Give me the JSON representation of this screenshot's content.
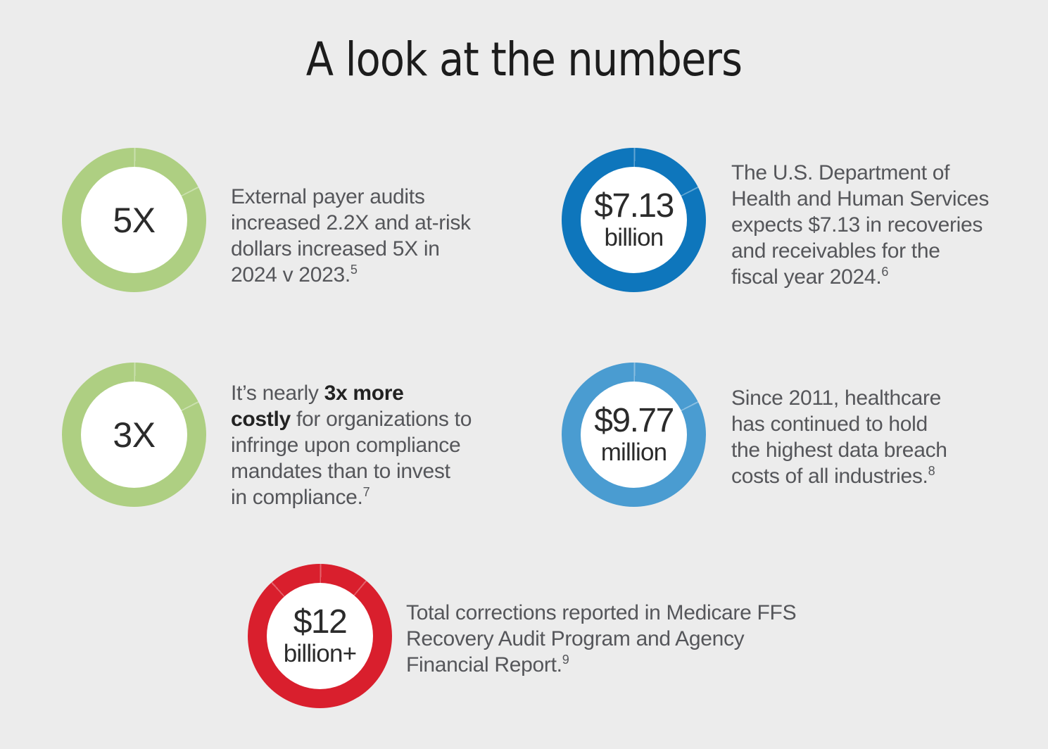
{
  "page": {
    "background": "#ececec",
    "title": "A look at the numbers"
  },
  "colors": {
    "green": "#aecf82",
    "dark_blue": "#0e76bc",
    "light_blue": "#4a9cd1",
    "red": "#d91f2d",
    "number_text": "#2b2b2b",
    "body_text": "#55565a"
  },
  "stats": [
    {
      "id": "payer-audits-5x",
      "value": "5X",
      "unit": "",
      "ring_color": "#aecf82",
      "text": "External payer audits\nincreased 2.2X and at-risk\ndollars increased 5X in\n2024 v 2023.",
      "footnote": "5"
    },
    {
      "id": "hhs-recoveries-7-13-billion",
      "value": "$7.13",
      "unit": "billion",
      "ring_color": "#0e76bc",
      "text": "The U.S. Department of\nHealth and Human Services\nexpects $7.13 in recoveries\nand receivables for the\nfiscal year 2024.",
      "footnote": "6"
    },
    {
      "id": "compliance-cost-3x",
      "value": "3X",
      "unit": "",
      "ring_color": "#aecf82",
      "text_prefix": "It’s nearly ",
      "text_bold": "3x more\ncostly",
      "text_rest": " for organizations to\ninfringe upon compliance\nmandates than to invest\nin compliance.",
      "footnote": "7"
    },
    {
      "id": "data-breach-9-77-million",
      "value": "$9.77",
      "unit": "million",
      "ring_color": "#4a9cd1",
      "text": "Since 2011, healthcare\nhas continued to hold\nthe highest data breach\ncosts of all industries.",
      "footnote": "8"
    },
    {
      "id": "medicare-corrections-12-billion",
      "value": "$12",
      "unit": "billion+",
      "ring_color": "#d91f2d",
      "text": "Total corrections reported in Medicare FFS\nRecovery Audit Program and Agency\nFinancial Report.",
      "footnote": "9"
    }
  ]
}
